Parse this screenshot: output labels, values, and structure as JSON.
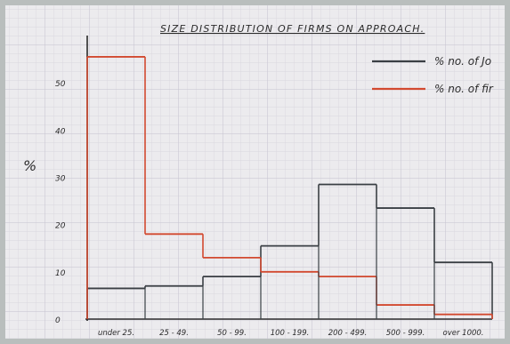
{
  "chart_data": {
    "type": "bar",
    "title": "SIZE DISTRIBUTION OF FIRMS ON APPROACH.",
    "ylabel": "%",
    "xlabel": "",
    "categories": [
      "under 25.",
      "25 - 49.",
      "50 - 99.",
      "100 - 199.",
      "200 - 499.",
      "500 - 999.",
      "over 1000."
    ],
    "series": [
      {
        "name": "% no. of Jo",
        "color": "#3a3f44",
        "values": [
          6.5,
          7,
          9,
          15.5,
          28.5,
          23.5,
          12
        ]
      },
      {
        "name": "% no. of fir",
        "color": "#d2492f",
        "values": [
          55.5,
          18,
          13,
          10,
          9,
          3,
          1
        ]
      }
    ],
    "yticks": [
      "0",
      "10",
      "20",
      "30",
      "40",
      "50"
    ],
    "ylim": [
      0,
      60
    ],
    "grid": true,
    "legend": "top-right"
  }
}
